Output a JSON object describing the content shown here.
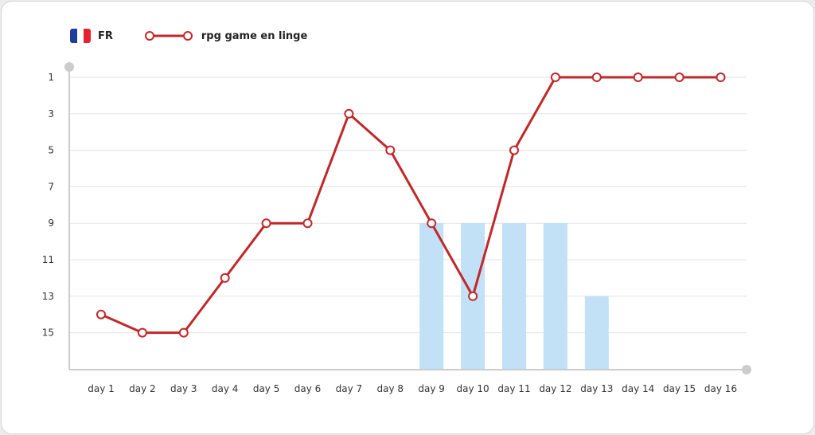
{
  "legend": {
    "country": "FR",
    "flag_colors": [
      "#1f3d99",
      "#ffffff",
      "#e8212e"
    ]
  },
  "colors": {
    "line": "#c0282a",
    "bar": "#c2e0f6",
    "grid": "#e3e3e3",
    "axis": "#cccccc"
  },
  "chart_data": {
    "type": "line",
    "categories": [
      "day 1",
      "day 2",
      "day 3",
      "day 4",
      "day 5",
      "day 6",
      "day 7",
      "day 8",
      "day 9",
      "day 10",
      "day 11",
      "day 12",
      "day 13",
      "day 14",
      "day 15",
      "day 16"
    ],
    "y_ticks": [
      "1",
      "3",
      "5",
      "7",
      "9",
      "11",
      "13",
      "15"
    ],
    "ylim": [
      1,
      17
    ],
    "y_reversed": true,
    "grid": true,
    "legend_position": "top-left",
    "series": [
      {
        "name": "rpg game en linge",
        "type": "line",
        "values": [
          14,
          15,
          15,
          12,
          9,
          9,
          3,
          5,
          9,
          13,
          5,
          1,
          1,
          1,
          1,
          1
        ]
      },
      {
        "type": "bar",
        "values": [
          null,
          null,
          null,
          null,
          null,
          null,
          null,
          null,
          9,
          9,
          9,
          9,
          13,
          null,
          null,
          null
        ]
      }
    ]
  }
}
